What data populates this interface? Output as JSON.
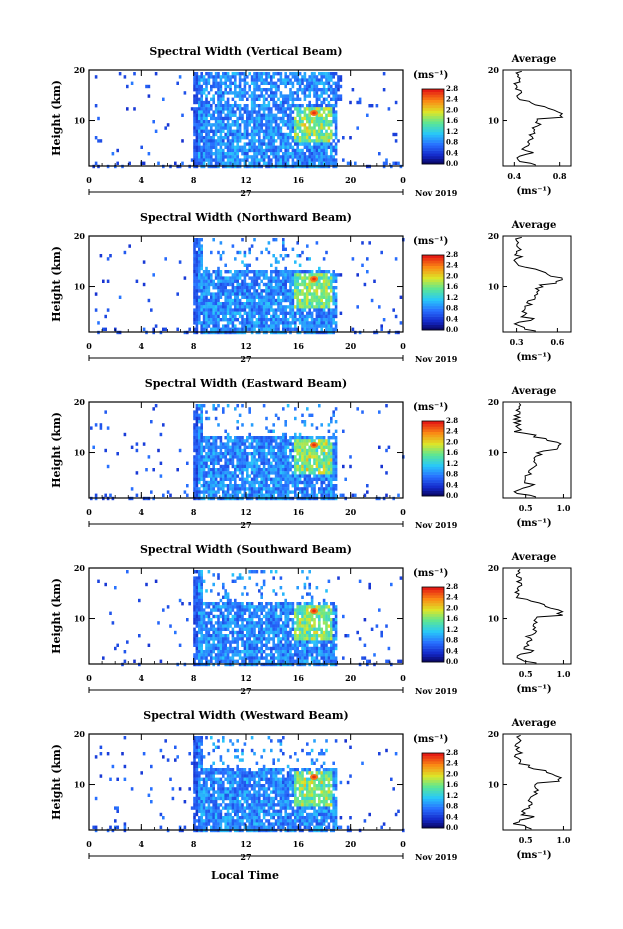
{
  "figure": {
    "bottom_xlabel": "Local Time",
    "date_label": "Nov 2019",
    "day_label": "27"
  },
  "chart_data": [
    {
      "type": "heatmap",
      "title": "Spectral Width (Vertical Beam)",
      "ylabel": "Height (km)",
      "x_ticks": [
        "0",
        "4",
        "8",
        "12",
        "16",
        "20",
        "0"
      ],
      "y_ticks": [
        "10",
        "20"
      ],
      "xlim": [
        0,
        24
      ],
      "ylim": [
        1,
        20
      ],
      "colorbar": {
        "unit": "(ms⁻¹)",
        "ticks": [
          "0.0",
          "0.4",
          "0.8",
          "1.2",
          "1.6",
          "2.0",
          "2.4",
          "2.8"
        ]
      },
      "profile": {
        "title": "Average",
        "x_ticks": [
          "0.4",
          "0.8"
        ],
        "xlim": [
          0.3,
          0.9
        ],
        "xlabel": "(ms⁻¹)",
        "y_ticks": [
          "10",
          "20"
        ]
      }
    },
    {
      "type": "heatmap",
      "title": "Spectral Width (Northward Beam)",
      "ylabel": "Height (km)",
      "x_ticks": [
        "0",
        "4",
        "8",
        "12",
        "16",
        "20",
        "0"
      ],
      "y_ticks": [
        "10",
        "20"
      ],
      "xlim": [
        0,
        24
      ],
      "ylim": [
        1,
        20
      ],
      "colorbar": {
        "unit": "(ms⁻¹)",
        "ticks": [
          "0.0",
          "0.4",
          "0.8",
          "1.2",
          "1.6",
          "2.0",
          "2.4",
          "2.8"
        ]
      },
      "profile": {
        "title": "Average",
        "x_ticks": [
          "0.3",
          "0.6"
        ],
        "xlim": [
          0.2,
          0.7
        ],
        "xlabel": "(ms⁻¹)",
        "y_ticks": [
          "10",
          "20"
        ]
      }
    },
    {
      "type": "heatmap",
      "title": "Spectral Width (Eastward Beam)",
      "ylabel": "Height (km)",
      "x_ticks": [
        "0",
        "4",
        "8",
        "12",
        "16",
        "20",
        "0"
      ],
      "y_ticks": [
        "10",
        "20"
      ],
      "xlim": [
        0,
        24
      ],
      "ylim": [
        1,
        20
      ],
      "colorbar": {
        "unit": "(ms⁻¹)",
        "ticks": [
          "0.0",
          "0.4",
          "0.8",
          "1.2",
          "1.6",
          "2.0",
          "2.4",
          "2.8"
        ]
      },
      "profile": {
        "title": "Average",
        "x_ticks": [
          "0.5",
          "1.0"
        ],
        "xlim": [
          0.2,
          1.1
        ],
        "xlabel": "(ms⁻¹)",
        "y_ticks": [
          "10",
          "20"
        ]
      }
    },
    {
      "type": "heatmap",
      "title": "Spectral Width (Southward Beam)",
      "ylabel": "Height (km)",
      "x_ticks": [
        "0",
        "4",
        "8",
        "12",
        "16",
        "20",
        "0"
      ],
      "y_ticks": [
        "10",
        "20"
      ],
      "xlim": [
        0,
        24
      ],
      "ylim": [
        1,
        20
      ],
      "colorbar": {
        "unit": "(ms⁻¹)",
        "ticks": [
          "0.0",
          "0.4",
          "0.8",
          "1.2",
          "1.6",
          "2.0",
          "2.4",
          "2.8"
        ]
      },
      "profile": {
        "title": "Average",
        "x_ticks": [
          "0.5",
          "1.0"
        ],
        "xlim": [
          0.2,
          1.1
        ],
        "xlabel": "(ms⁻¹)",
        "y_ticks": [
          "10",
          "20"
        ]
      }
    },
    {
      "type": "heatmap",
      "title": "Spectral Width (Westward Beam)",
      "ylabel": "Height (km)",
      "x_ticks": [
        "0",
        "4",
        "8",
        "12",
        "16",
        "20",
        "0"
      ],
      "y_ticks": [
        "10",
        "20"
      ],
      "xlim": [
        0,
        24
      ],
      "ylim": [
        1,
        20
      ],
      "colorbar": {
        "unit": "(ms⁻¹)",
        "ticks": [
          "0.0",
          "0.4",
          "0.8",
          "1.2",
          "1.6",
          "2.0",
          "2.4",
          "2.8"
        ]
      },
      "profile": {
        "title": "Average",
        "x_ticks": [
          "0.5",
          "1.0"
        ],
        "xlim": [
          0.2,
          1.1
        ],
        "xlabel": "(ms⁻¹)",
        "y_ticks": [
          "10",
          "20"
        ]
      }
    }
  ]
}
